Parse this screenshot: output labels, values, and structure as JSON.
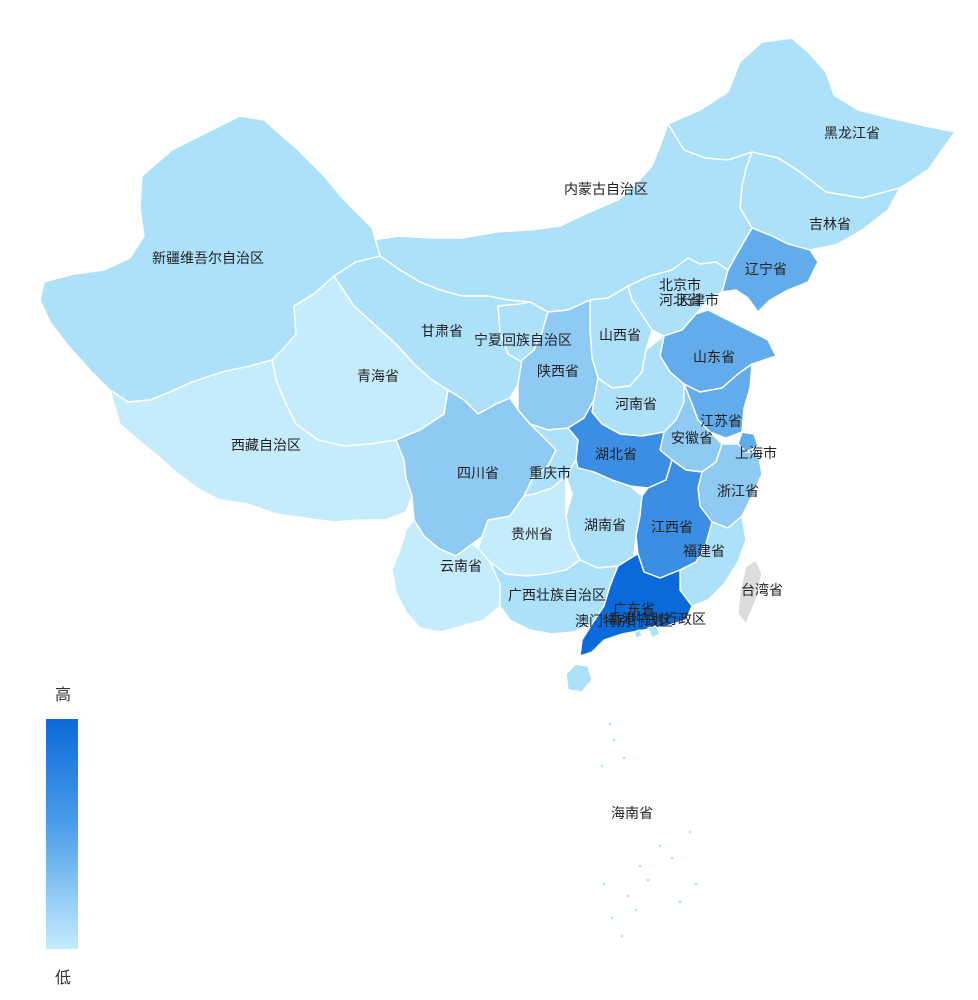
{
  "legend": {
    "high": "高",
    "low": "低"
  },
  "colors": {
    "level1": "#c4ecfd",
    "level2": "#ace1f9",
    "level3": "#8fcaf2",
    "level4": "#62aceb",
    "level5": "#3b8ee4",
    "level6": "#0b6ad9",
    "no_data": "#dcdcdc"
  },
  "provinces": [
    {
      "id": "heilongjiang",
      "name": "黑龙江省",
      "level": 2
    },
    {
      "id": "jilin",
      "name": "吉林省",
      "level": 2
    },
    {
      "id": "liaoning",
      "name": "辽宁省",
      "level": 4
    },
    {
      "id": "neimenggu",
      "name": "内蒙古自治区",
      "level": 2
    },
    {
      "id": "xinjiang",
      "name": "新疆维吾尔自治区",
      "level": 2
    },
    {
      "id": "beijing",
      "name": "北京市",
      "level": 2
    },
    {
      "id": "tianjin",
      "name": "天津市",
      "level": 3
    },
    {
      "id": "hebei",
      "name": "河北省",
      "level": 2
    },
    {
      "id": "shanxi",
      "name": "山西省",
      "level": 2
    },
    {
      "id": "shandong",
      "name": "山东省",
      "level": 4
    },
    {
      "id": "gansu",
      "name": "甘肃省",
      "level": 2
    },
    {
      "id": "ningxia",
      "name": "宁夏回族自治区",
      "level": 2
    },
    {
      "id": "qinghai",
      "name": "青海省",
      "level": 1
    },
    {
      "id": "shaanxi",
      "name": "陕西省",
      "level": 3
    },
    {
      "id": "henan",
      "name": "河南省",
      "level": 2
    },
    {
      "id": "jiangsu",
      "name": "江苏省",
      "level": 4
    },
    {
      "id": "anhui",
      "name": "安徽省",
      "level": 3
    },
    {
      "id": "shanghai",
      "name": "上海市",
      "level": 4
    },
    {
      "id": "xizang",
      "name": "西藏自治区",
      "level": 1
    },
    {
      "id": "sichuan",
      "name": "四川省",
      "level": 3
    },
    {
      "id": "chongqing",
      "name": "重庆市",
      "level": 2
    },
    {
      "id": "hubei",
      "name": "湖北省",
      "level": 5
    },
    {
      "id": "zhejiang",
      "name": "浙江省",
      "level": 3
    },
    {
      "id": "hunan",
      "name": "湖南省",
      "level": 2
    },
    {
      "id": "jiangxi",
      "name": "江西省",
      "level": 5
    },
    {
      "id": "guizhou",
      "name": "贵州省",
      "level": 1
    },
    {
      "id": "fujian",
      "name": "福建省",
      "level": 2
    },
    {
      "id": "yunnan",
      "name": "云南省",
      "level": 1
    },
    {
      "id": "guangxi",
      "name": "广西壮族自治区",
      "level": 2
    },
    {
      "id": "guangdong",
      "name": "广东省",
      "level": 6
    },
    {
      "id": "taiwan",
      "name": "台湾省",
      "level": 0
    },
    {
      "id": "hongkong",
      "name": "香港特别行政区",
      "level": 2
    },
    {
      "id": "macao",
      "name": "澳门特别行政区",
      "level": 2
    },
    {
      "id": "hainan",
      "name": "海南省",
      "level": 2
    }
  ]
}
